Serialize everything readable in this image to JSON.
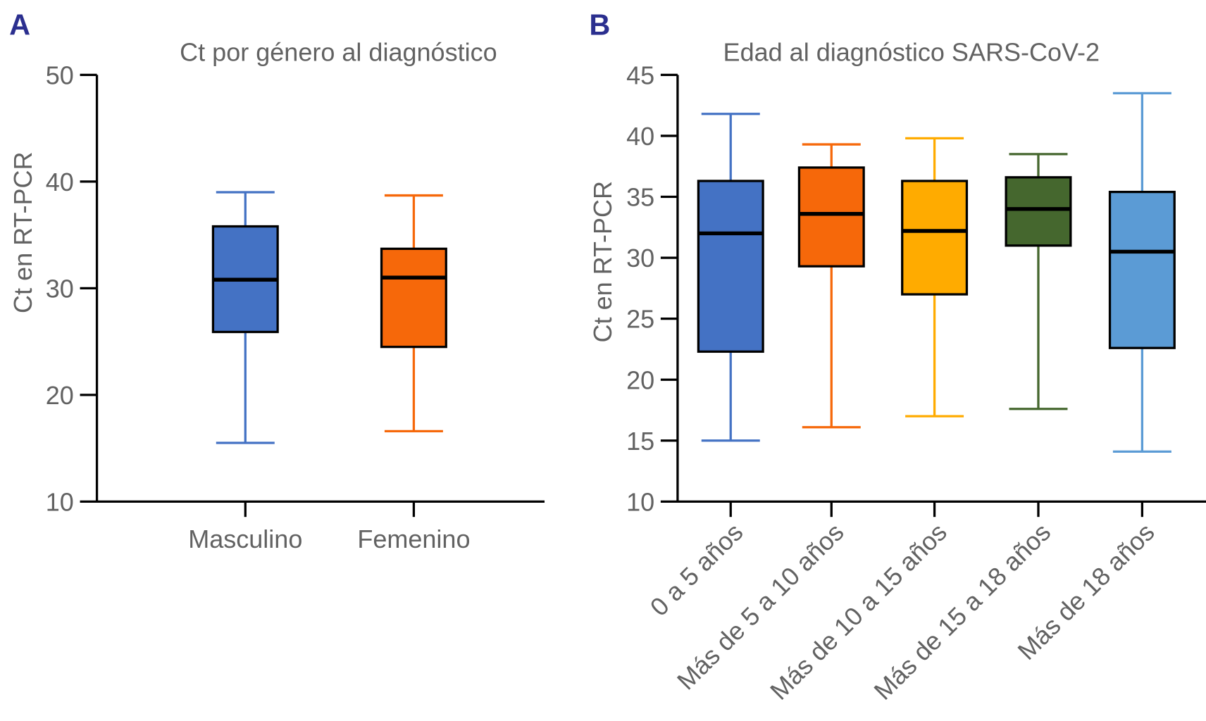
{
  "chart_data": [
    {
      "type": "box",
      "panel_letter": "A",
      "title": "Ct por género al diagnóstico",
      "xlabel": "",
      "ylabel": "Ct en RT-PCR",
      "ylim": [
        10,
        50
      ],
      "yticks": [
        10,
        20,
        30,
        40,
        50
      ],
      "grid": false,
      "categories": [
        "Masculino",
        "Femenino"
      ],
      "boxes": [
        {
          "name": "Masculino",
          "min": 15.5,
          "q1": 25.9,
          "median": 30.8,
          "q3": 35.8,
          "max": 39.0,
          "color": "#4472C4"
        },
        {
          "name": "Femenino",
          "min": 16.6,
          "q1": 24.5,
          "median": 31.0,
          "q3": 33.7,
          "max": 38.7,
          "color": "#F6680A"
        }
      ]
    },
    {
      "type": "box",
      "panel_letter": "B",
      "title": "Edad al diagnóstico SARS-CoV-2",
      "xlabel": "",
      "ylabel": "Ct en RT-PCR",
      "ylim": [
        10,
        45
      ],
      "yticks": [
        10,
        15,
        20,
        25,
        30,
        35,
        40,
        45
      ],
      "grid": false,
      "categories": [
        "0 a 5 años",
        "Más de 5 a 10 años",
        "Más de 10 a 15 años",
        "Más de 15 a 18 años",
        "Más de 18 años"
      ],
      "boxes": [
        {
          "name": "0 a 5 años",
          "min": 15.0,
          "q1": 22.3,
          "median": 32.0,
          "q3": 36.3,
          "max": 41.8,
          "color": "#4472C4"
        },
        {
          "name": "Más de 5 a 10 años",
          "min": 16.1,
          "q1": 29.3,
          "median": 33.6,
          "q3": 37.4,
          "max": 39.3,
          "color": "#F6680A"
        },
        {
          "name": "Más de 10 a 15 años",
          "min": 17.0,
          "q1": 27.0,
          "median": 32.2,
          "q3": 36.3,
          "max": 39.8,
          "color": "#FFAB00"
        },
        {
          "name": "Más de 15 a 18 años",
          "min": 17.6,
          "q1": 31.0,
          "median": 34.0,
          "q3": 36.6,
          "max": 38.5,
          "color": "#45672E"
        },
        {
          "name": "Más de 18 años",
          "min": 14.1,
          "q1": 22.6,
          "median": 30.5,
          "q3": 35.4,
          "max": 43.5,
          "color": "#5B9BD5"
        }
      ]
    }
  ]
}
